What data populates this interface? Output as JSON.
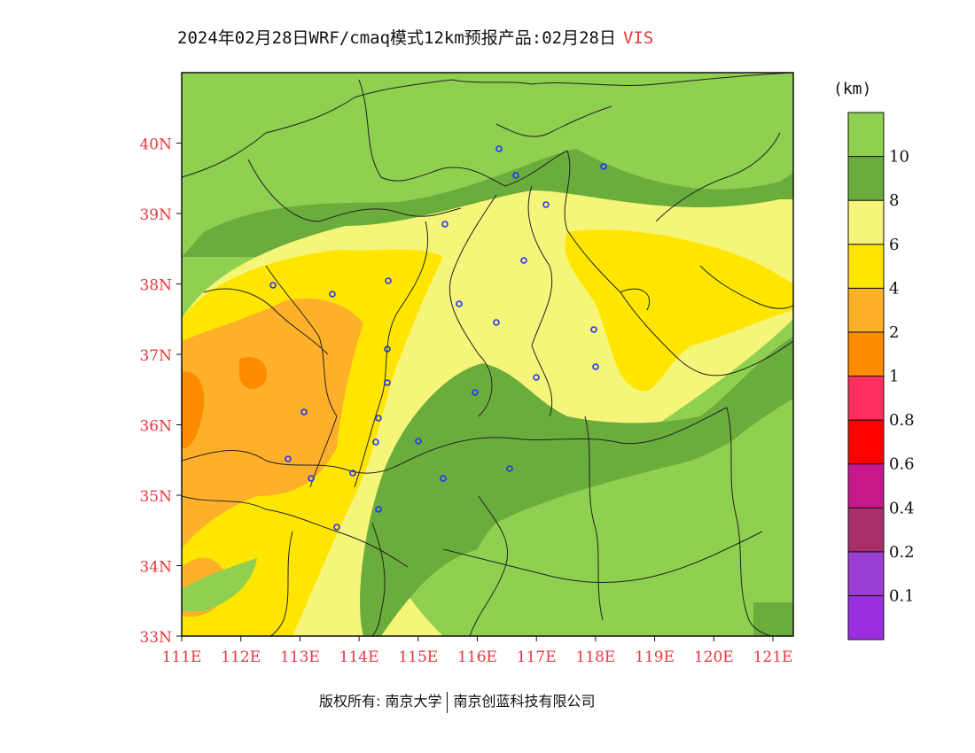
{
  "title": {
    "text": "2024年02月28日WRF/cmaq模式12km预报产品:02月28日",
    "variable": "VIS"
  },
  "legend": {
    "unit": "(km)",
    "colors": [
      "#9b2fe0",
      "#9a3fd1",
      "#a82f6a",
      "#c8178a",
      "#ff0000",
      "#ff2f5f",
      "#ff8c00",
      "#ffb02a",
      "#ffe600",
      "#f5f57a",
      "#6bad3c",
      "#8fd050"
    ],
    "labels": [
      "0.1",
      "0.2",
      "0.4",
      "0.6",
      "0.8",
      "1",
      "2",
      "4",
      "6",
      "8",
      "10"
    ]
  },
  "map": {
    "lat_labels": [
      "33N",
      "34N",
      "35N",
      "36N",
      "37N",
      "38N",
      "39N",
      "40N"
    ],
    "lon_labels": [
      "111E",
      "112E",
      "113E",
      "114E",
      "115E",
      "116E",
      "117E",
      "118E",
      "119E",
      "120E",
      "121E"
    ],
    "axis_label_color": "#e8383d"
  },
  "footer": {
    "left": "版权所有: 南京大学",
    "right": "南京创蓝科技有限公司"
  }
}
